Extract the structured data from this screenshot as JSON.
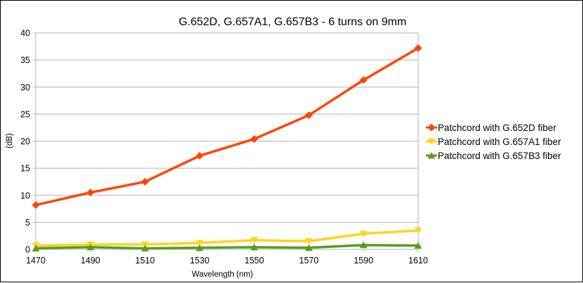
{
  "chart_data": {
    "type": "line",
    "title": "G.652D, G.657A1, G.657B3 - 6 turns on 9mm",
    "xlabel": "Wavelength (nm)",
    "ylabel": "(dB)",
    "x": [
      1470,
      1490,
      1510,
      1530,
      1550,
      1570,
      1590,
      1610
    ],
    "ylim": [
      0,
      40
    ],
    "yticks": [
      0,
      5,
      10,
      15,
      20,
      25,
      30,
      35,
      40
    ],
    "grid": "horizontal",
    "legend_position": "right",
    "series": [
      {
        "name": "Patchcord with G.652D fiber",
        "color": "#ff4500",
        "marker": "diamond",
        "values": [
          8.2,
          10.5,
          12.5,
          17.3,
          20.4,
          24.8,
          31.3,
          37.2
        ]
      },
      {
        "name": "Patchcord with G.657A1 fiber",
        "color": "#ffd320",
        "marker": "triangle-down",
        "values": [
          0.7,
          0.9,
          0.9,
          1.2,
          1.7,
          1.5,
          2.9,
          3.5
        ]
      },
      {
        "name": "Patchcord with G.657B3 fiber",
        "color": "#579d1c",
        "marker": "triangle-up",
        "values": [
          0.2,
          0.4,
          0.2,
          0.3,
          0.4,
          0.3,
          0.8,
          0.7
        ]
      }
    ]
  }
}
